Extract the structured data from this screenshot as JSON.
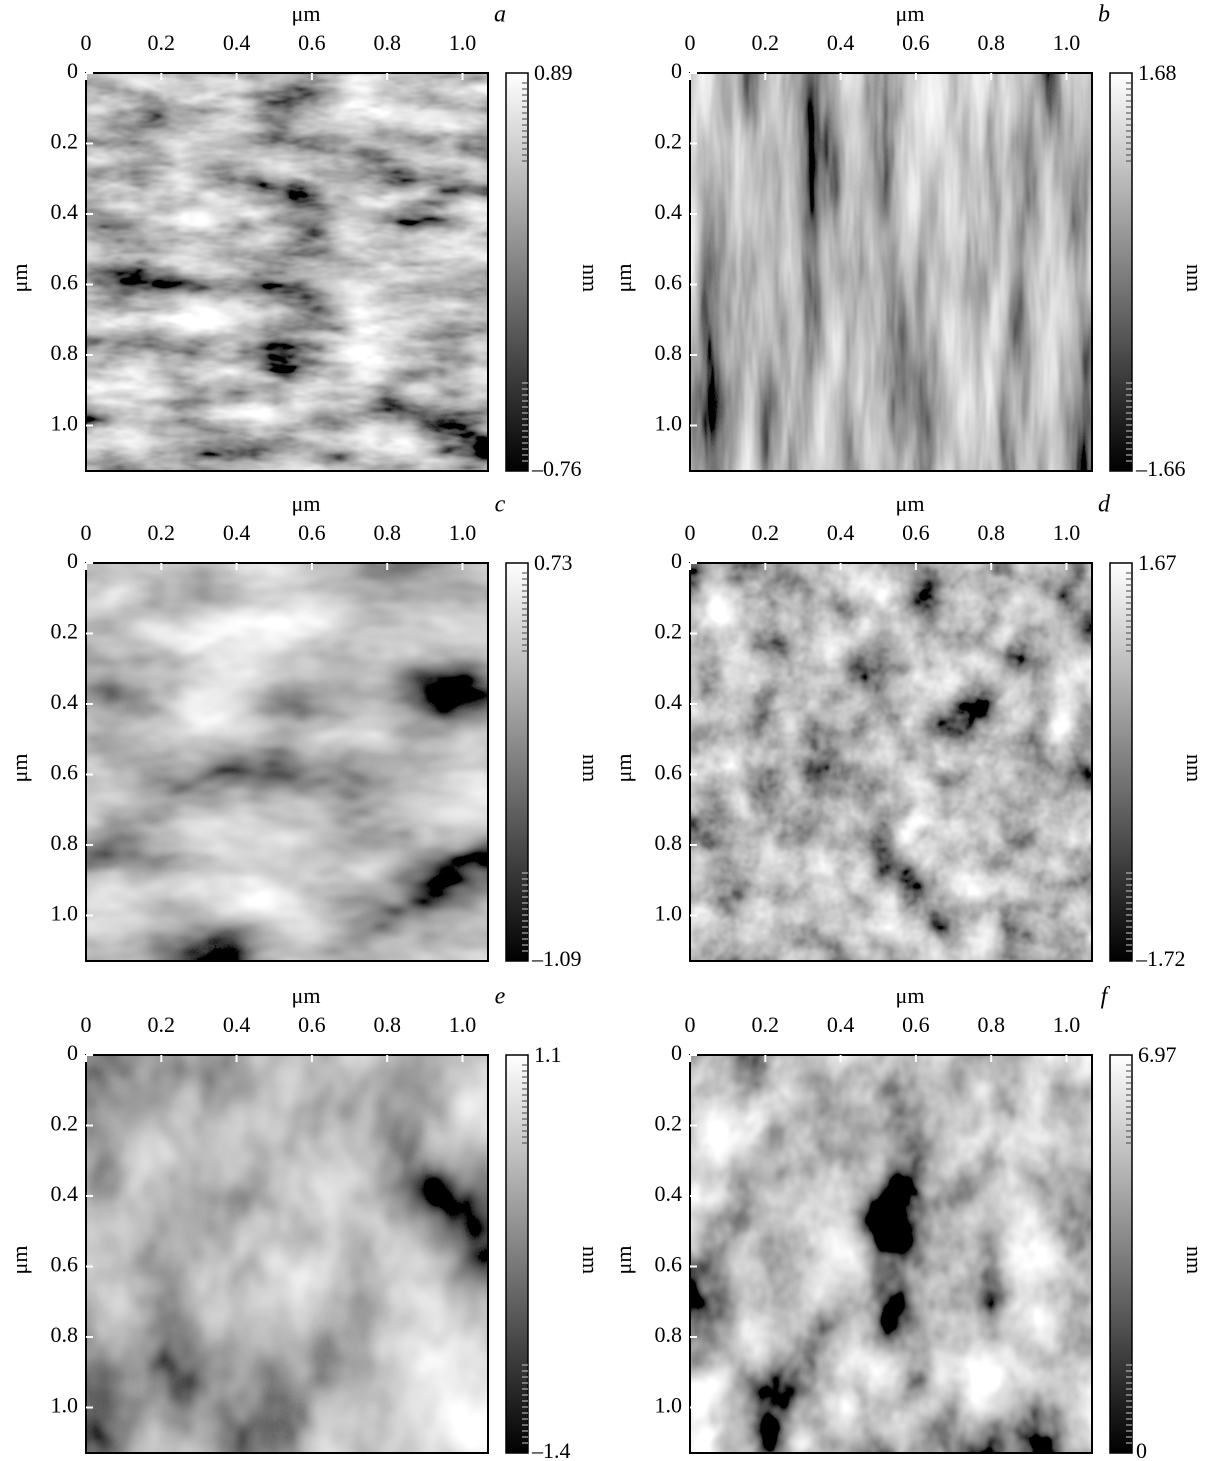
{
  "panels": [
    {
      "letter": "a",
      "x_label": "μm",
      "y_label": "μm",
      "x_ticks": [
        "0",
        "0.2",
        "0.4",
        "0.6",
        "0.8",
        "1.0"
      ],
      "y_ticks": [
        "0",
        "0.2",
        "0.4",
        "0.6",
        "0.8",
        "1.0"
      ],
      "colorbar": {
        "max": "0.89",
        "min": "–0.76",
        "unit": "nm"
      }
    },
    {
      "letter": "b",
      "x_label": "μm",
      "y_label": "μm",
      "x_ticks": [
        "0",
        "0.2",
        "0.4",
        "0.6",
        "0.8",
        "1.0"
      ],
      "y_ticks": [
        "0",
        "0.2",
        "0.4",
        "0.6",
        "0.8",
        "1.0"
      ],
      "colorbar": {
        "max": "1.68",
        "min": "–1.66",
        "unit": "nm"
      }
    },
    {
      "letter": "c",
      "x_label": "μm",
      "y_label": "μm",
      "x_ticks": [
        "0",
        "0.2",
        "0.4",
        "0.6",
        "0.8",
        "1.0"
      ],
      "y_ticks": [
        "0",
        "0.2",
        "0.4",
        "0.6",
        "0.8",
        "1.0"
      ],
      "colorbar": {
        "max": "0.73",
        "min": "–1.09",
        "unit": "nm"
      }
    },
    {
      "letter": "d",
      "x_label": "μm",
      "y_label": "μm",
      "x_ticks": [
        "0",
        "0.2",
        "0.4",
        "0.6",
        "0.8",
        "1.0"
      ],
      "y_ticks": [
        "0",
        "0.2",
        "0.4",
        "0.6",
        "0.8",
        "1.0"
      ],
      "colorbar": {
        "max": "1.67",
        "min": "–1.72",
        "unit": "nm"
      }
    },
    {
      "letter": "e",
      "x_label": "μm",
      "y_label": "μm",
      "x_ticks": [
        "0",
        "0.2",
        "0.4",
        "0.6",
        "0.8",
        "1.0"
      ],
      "y_ticks": [
        "0",
        "0.2",
        "0.4",
        "0.6",
        "0.8",
        "1.0"
      ],
      "colorbar": {
        "max": "1.1",
        "min": "–1.4",
        "unit": "nm"
      }
    },
    {
      "letter": "f",
      "x_label": "μm",
      "y_label": "μm",
      "x_ticks": [
        "0",
        "0.2",
        "0.4",
        "0.6",
        "0.8",
        "1.0"
      ],
      "y_ticks": [
        "0",
        "0.2",
        "0.4",
        "0.6",
        "0.8",
        "1.0"
      ],
      "colorbar": {
        "max": "6.97",
        "min": "0",
        "unit": "nm"
      }
    }
  ]
}
